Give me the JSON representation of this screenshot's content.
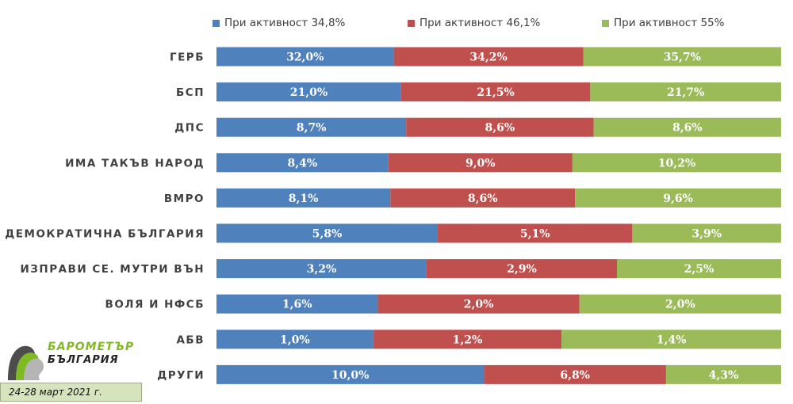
{
  "chart_data": {
    "type": "bar",
    "orientation": "horizontal",
    "stacked": "100%",
    "categories": [
      "ГЕРБ",
      "БСП",
      "ДПС",
      "ИМА ТАКЪВ НАРОД",
      "ВМРО",
      "ДЕМОКРАТИЧНА БЪЛГАРИЯ",
      "ИЗПРАВИ СЕ. МУТРИ ВЪН",
      "ВОЛЯ И НФСБ",
      "АБВ",
      "ДРУГИ"
    ],
    "series": [
      {
        "name": "При активност 34,8%",
        "color": "#4f81bd",
        "values": [
          32.0,
          21.0,
          8.7,
          8.4,
          8.1,
          5.8,
          3.2,
          1.6,
          1.0,
          10.0
        ],
        "labels": [
          "32,0%",
          "21,0%",
          "8,7%",
          "8,4%",
          "8,1%",
          "5,8%",
          "3,2%",
          "1,6%",
          "1,0%",
          "10,0%"
        ]
      },
      {
        "name": "При активност 46,1%",
        "color": "#c0504d",
        "values": [
          34.2,
          21.5,
          8.6,
          9.0,
          8.6,
          5.1,
          2.9,
          2.0,
          1.2,
          6.8
        ],
        "labels": [
          "34,2%",
          "21,5%",
          "8,6%",
          "9,0%",
          "8,6%",
          "5,1%",
          "2,9%",
          "2,0%",
          "1,2%",
          "6,8%"
        ]
      },
      {
        "name": "При активност 55%",
        "color": "#9bbb59",
        "values": [
          35.7,
          21.7,
          8.6,
          10.2,
          9.6,
          3.9,
          2.5,
          2.0,
          1.4,
          4.3
        ],
        "labels": [
          "35,7%",
          "21,7%",
          "8,6%",
          "10,2%",
          "9,6%",
          "3,9%",
          "2,5%",
          "2,0%",
          "1,4%",
          "4,3%"
        ]
      }
    ],
    "legend_position": "top"
  },
  "logo": {
    "line1": "БАРОМЕТЪР",
    "line2": "БЪЛГАРИЯ"
  },
  "date_note": "24-28 март 2021 г."
}
